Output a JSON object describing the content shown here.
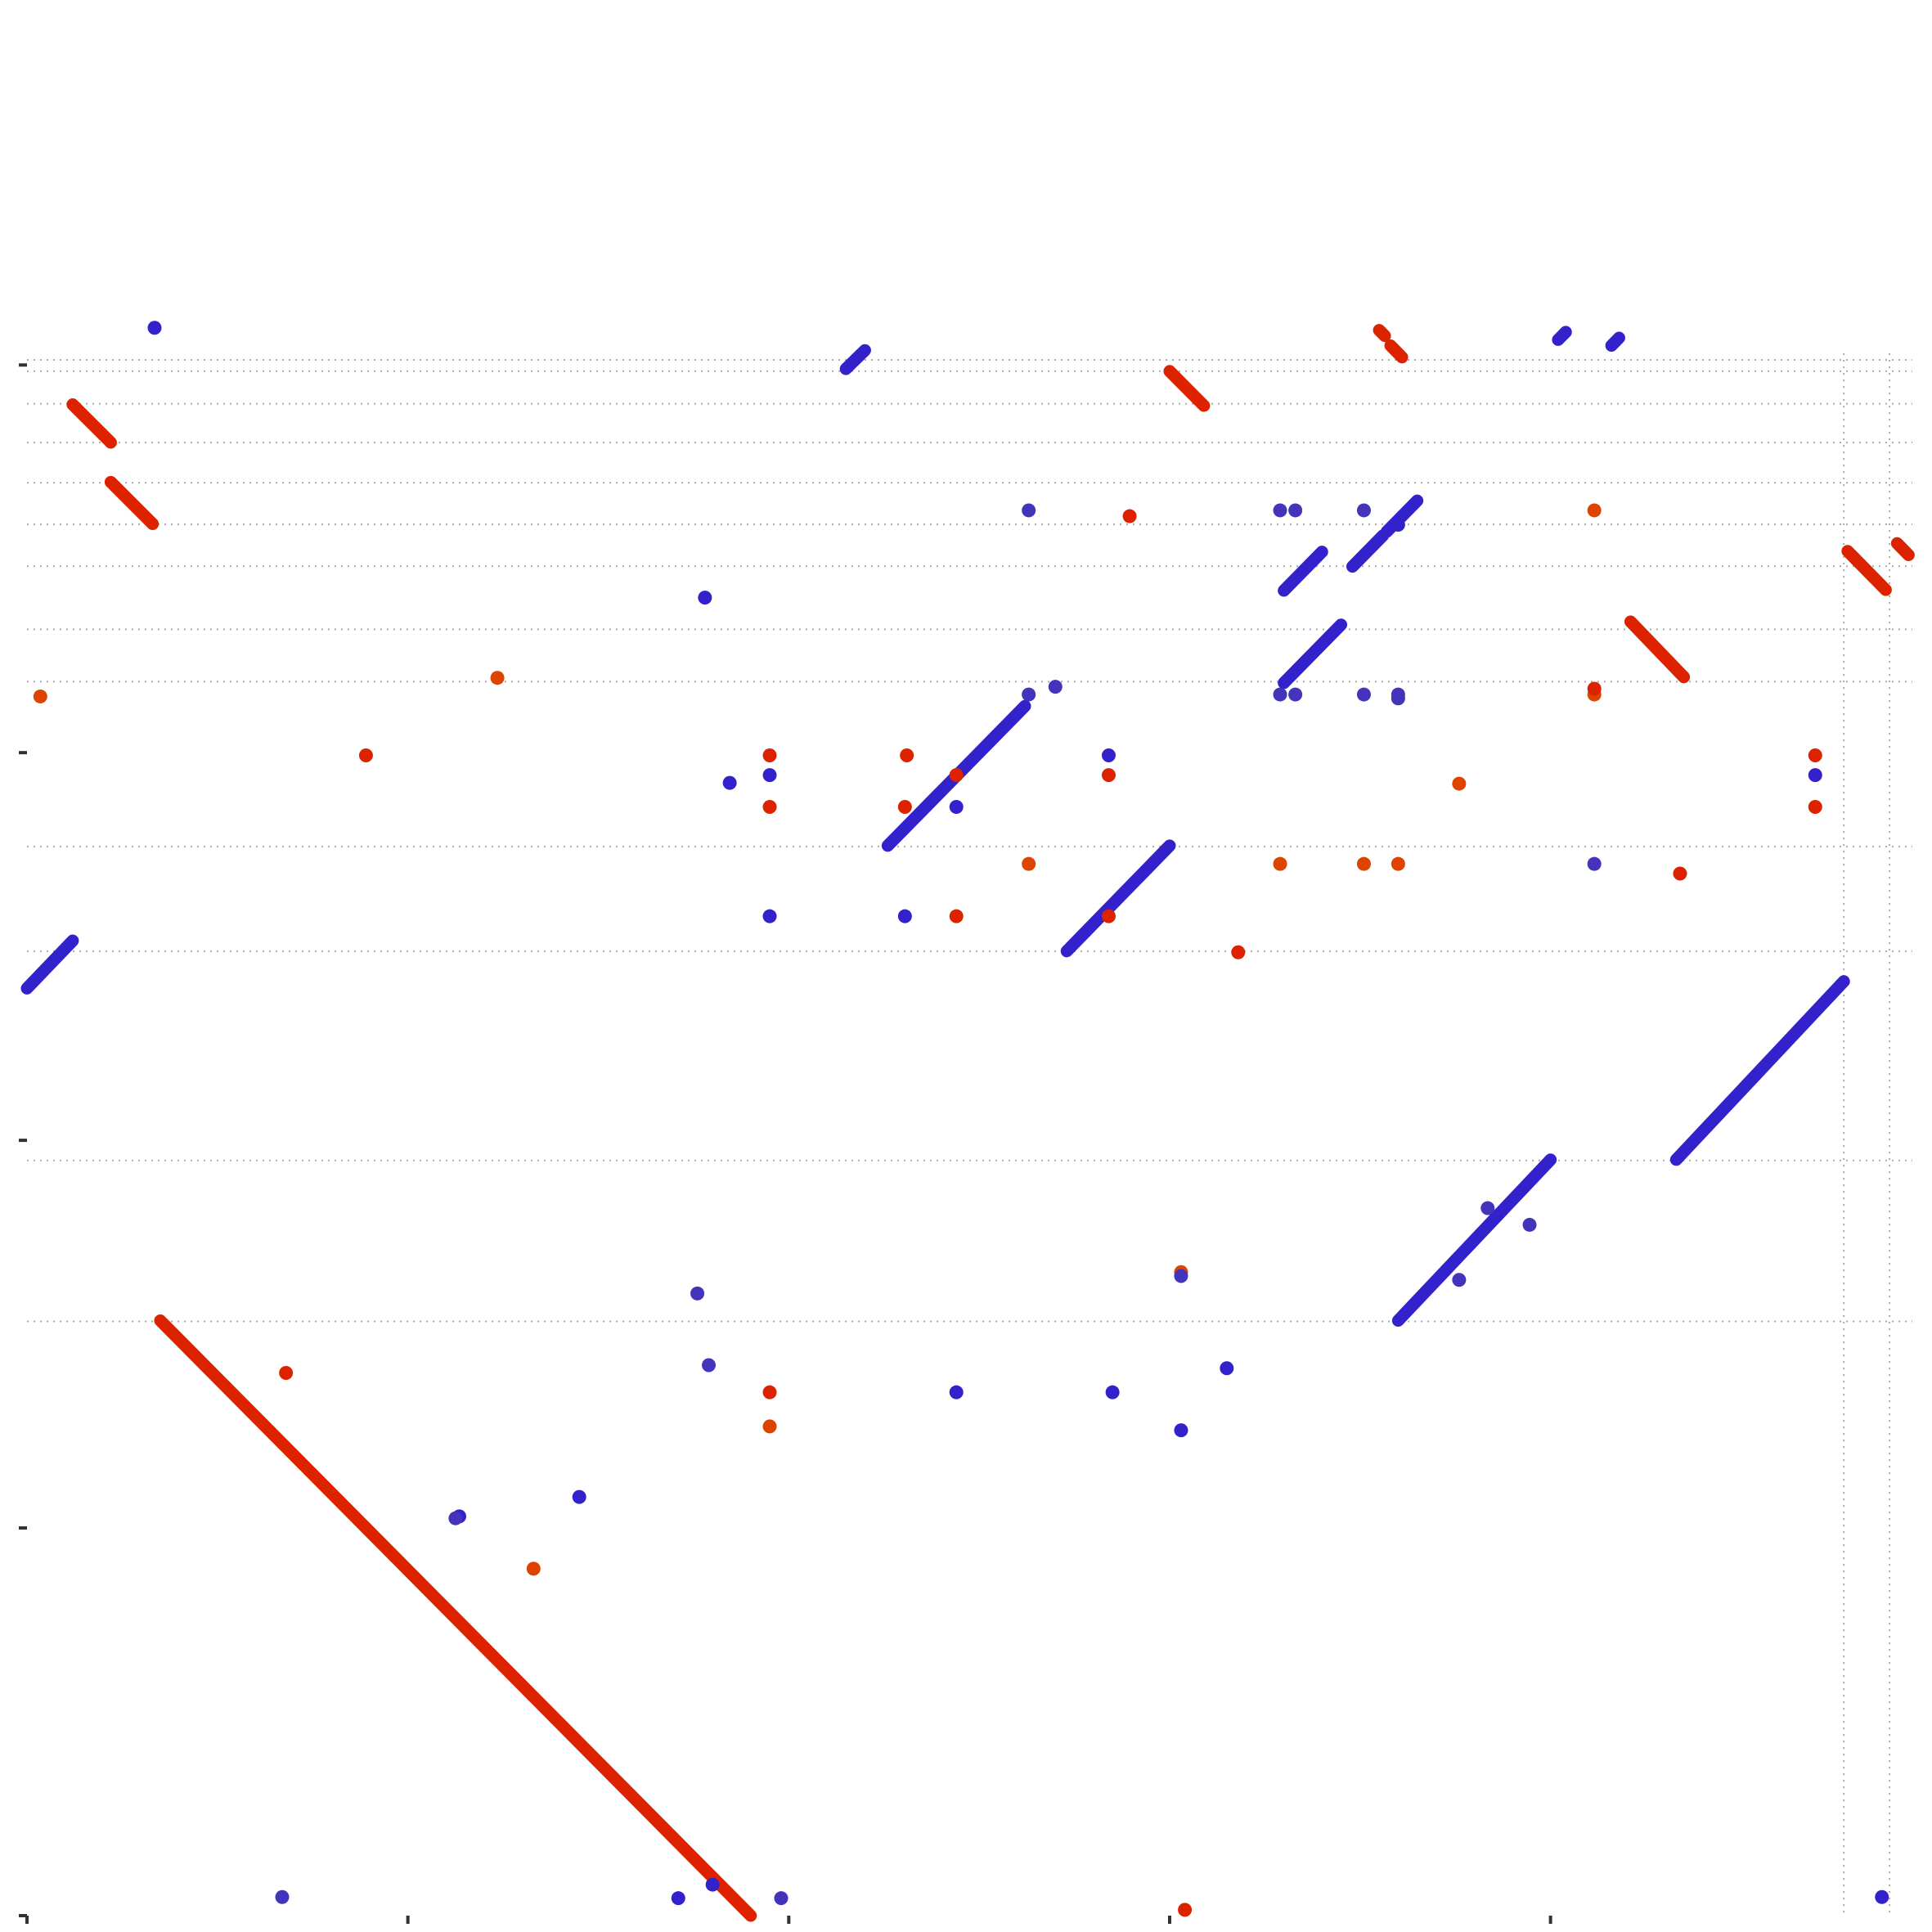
{
  "chart_data": {
    "type": "scatter",
    "title": "",
    "xlabel": "",
    "ylabel": "",
    "xlim": [
      0,
      4950
    ],
    "ylim": [
      0,
      4030
    ],
    "grid": "dotted",
    "legend": "none",
    "colors": {
      "forward": "#dd2200",
      "reverse": "#3322cc",
      "forward_alt": "#dd4400",
      "reverse_alt": "#4433bb",
      "grid": "#aaaaaa",
      "axis": "#333333"
    },
    "x_ticks": [
      0,
      1000,
      2000,
      3000,
      4000
    ],
    "y_ticks": [
      0,
      1000,
      2000,
      3000,
      4000
    ],
    "x_gridlines": [
      4770,
      4890
    ],
    "y_gridlines": [
      1533,
      1948,
      2488,
      2758,
      3183,
      3318,
      3481,
      3589,
      3696,
      3800,
      3900,
      3984,
      4013,
      4038,
      4050,
      4062,
      4073,
      4083,
      4093
    ],
    "segments": [
      {
        "strand": "forward",
        "x": [
          350,
          1900
        ],
        "y": [
          1535,
          0
        ]
      },
      {
        "strand": "reverse",
        "x": [
          0,
          120
        ],
        "y": [
          2392,
          2515
        ]
      },
      {
        "strand": "forward",
        "x": [
          120,
          220
        ],
        "y": [
          3898,
          3800
        ]
      },
      {
        "strand": "forward",
        "x": [
          220,
          330
        ],
        "y": [
          3698,
          3590
        ]
      },
      {
        "strand": "reverse",
        "x": [
          2150,
          2200
        ],
        "y": [
          3990,
          4038
        ]
      },
      {
        "strand": "forward",
        "x": [
          3000,
          3090
        ],
        "y": [
          3984,
          3895
        ]
      },
      {
        "strand": "reverse",
        "x": [
          3480,
          3560
        ],
        "y": [
          3480,
          3560
        ]
      },
      {
        "strand": "reverse",
        "x": [
          3300,
          3400
        ],
        "y": [
          3418,
          3518
        ]
      },
      {
        "strand": "forward",
        "x": [
          3550,
          3565
        ],
        "y": [
          4090,
          4075
        ]
      },
      {
        "strand": "forward",
        "x": [
          3580,
          3610
        ],
        "y": [
          4050,
          4020
        ]
      },
      {
        "strand": "reverse",
        "x": [
          4020,
          4040
        ],
        "y": [
          4065,
          4085
        ]
      },
      {
        "strand": "reverse",
        "x": [
          4160,
          4180
        ],
        "y": [
          4050,
          4070
        ]
      },
      {
        "strand": "forward",
        "x": [
          4210,
          4350
        ],
        "y": [
          3338,
          3195
        ]
      },
      {
        "strand": "forward",
        "x": [
          4780,
          4880
        ],
        "y": [
          3520,
          3420
        ]
      },
      {
        "strand": "forward",
        "x": [
          4910,
          4940
        ],
        "y": [
          3540,
          3510
        ]
      },
      {
        "strand": "reverse",
        "x": [
          2260,
          2620
        ],
        "y": [
          2760,
          3120
        ]
      },
      {
        "strand": "reverse",
        "x": [
          2730,
          3000
        ],
        "y": [
          2488,
          2760
        ]
      },
      {
        "strand": "reverse",
        "x": [
          3300,
          3450
        ],
        "y": [
          3180,
          3330
        ]
      },
      {
        "strand": "reverse",
        "x": [
          3570,
          3650
        ],
        "y": [
          3570,
          3650
        ]
      },
      {
        "strand": "reverse",
        "x": [
          3600,
          4000
        ],
        "y": [
          1535,
          1950
        ]
      },
      {
        "strand": "reverse",
        "x": [
          4330,
          4770
        ],
        "y": [
          1950,
          2410
        ]
      }
    ],
    "points": [
      {
        "strand": "reverse",
        "x": 335,
        "y": 4096
      },
      {
        "strand": "forward_alt",
        "x": 35,
        "y": 3145
      },
      {
        "strand": "forward_alt",
        "x": 1235,
        "y": 3193
      },
      {
        "strand": "reverse",
        "x": 1780,
        "y": 3400
      },
      {
        "strand": "reverse_alt",
        "x": 2630,
        "y": 3625
      },
      {
        "strand": "forward",
        "x": 2895,
        "y": 3610
      },
      {
        "strand": "reverse_alt",
        "x": 3290,
        "y": 3625
      },
      {
        "strand": "reverse_alt",
        "x": 3330,
        "y": 3625
      },
      {
        "strand": "reverse_alt",
        "x": 3510,
        "y": 3625
      },
      {
        "strand": "reverse",
        "x": 3600,
        "y": 3588
      },
      {
        "strand": "forward_alt",
        "x": 4115,
        "y": 3625
      },
      {
        "strand": "forward",
        "x": 890,
        "y": 2993
      },
      {
        "strand": "forward",
        "x": 1950,
        "y": 2993
      },
      {
        "strand": "forward",
        "x": 2310,
        "y": 2993
      },
      {
        "strand": "reverse",
        "x": 2840,
        "y": 2993
      },
      {
        "strand": "forward",
        "x": 4695,
        "y": 2993
      },
      {
        "strand": "reverse",
        "x": 1845,
        "y": 2922
      },
      {
        "strand": "reverse",
        "x": 1950,
        "y": 2942
      },
      {
        "strand": "forward",
        "x": 2440,
        "y": 2942
      },
      {
        "strand": "forward",
        "x": 2840,
        "y": 2942
      },
      {
        "strand": "reverse",
        "x": 4695,
        "y": 2942
      },
      {
        "strand": "forward",
        "x": 1950,
        "y": 2860
      },
      {
        "strand": "forward",
        "x": 2305,
        "y": 2860
      },
      {
        "strand": "reverse",
        "x": 2440,
        "y": 2860
      },
      {
        "strand": "forward",
        "x": 4695,
        "y": 2860
      },
      {
        "strand": "forward_alt",
        "x": 3760,
        "y": 2920
      },
      {
        "strand": "forward_alt",
        "x": 2630,
        "y": 2713
      },
      {
        "strand": "forward_alt",
        "x": 3290,
        "y": 2713
      },
      {
        "strand": "forward_alt",
        "x": 3510,
        "y": 2713
      },
      {
        "strand": "forward_alt",
        "x": 3600,
        "y": 2713
      },
      {
        "strand": "reverse_alt",
        "x": 4115,
        "y": 2713
      },
      {
        "strand": "forward",
        "x": 4340,
        "y": 2688
      },
      {
        "strand": "reverse",
        "x": 1950,
        "y": 2578
      },
      {
        "strand": "reverse",
        "x": 2305,
        "y": 2578
      },
      {
        "strand": "forward",
        "x": 2440,
        "y": 2578
      },
      {
        "strand": "forward",
        "x": 2840,
        "y": 2578
      },
      {
        "strand": "forward",
        "x": 3180,
        "y": 2485
      },
      {
        "strand": "reverse_alt",
        "x": 2700,
        "y": 3170
      },
      {
        "strand": "reverse_alt",
        "x": 2630,
        "y": 3150
      },
      {
        "strand": "reverse_alt",
        "x": 3290,
        "y": 3150
      },
      {
        "strand": "reverse_alt",
        "x": 3330,
        "y": 3150
      },
      {
        "strand": "reverse_alt",
        "x": 3510,
        "y": 3150
      },
      {
        "strand": "reverse_alt",
        "x": 3600,
        "y": 3150
      },
      {
        "strand": "reverse_alt",
        "x": 3600,
        "y": 3140
      },
      {
        "strand": "forward_alt",
        "x": 4115,
        "y": 3150
      },
      {
        "strand": "forward",
        "x": 4115,
        "y": 3165
      },
      {
        "strand": "reverse_alt",
        "x": 3835,
        "y": 1825
      },
      {
        "strand": "reverse_alt",
        "x": 3945,
        "y": 1782
      },
      {
        "strand": "reverse_alt",
        "x": 3760,
        "y": 1640
      },
      {
        "strand": "forward_alt",
        "x": 3030,
        "y": 1660
      },
      {
        "strand": "reverse_alt",
        "x": 3030,
        "y": 1650
      },
      {
        "strand": "reverse_alt",
        "x": 1760,
        "y": 1605
      },
      {
        "strand": "reverse_alt",
        "x": 1790,
        "y": 1420
      },
      {
        "strand": "forward",
        "x": 680,
        "y": 1400
      },
      {
        "strand": "reverse",
        "x": 3150,
        "y": 1412
      },
      {
        "strand": "forward",
        "x": 1950,
        "y": 1350
      },
      {
        "strand": "reverse",
        "x": 2440,
        "y": 1350
      },
      {
        "strand": "reverse",
        "x": 2850,
        "y": 1350
      },
      {
        "strand": "forward_alt",
        "x": 1950,
        "y": 1262
      },
      {
        "strand": "reverse",
        "x": 3030,
        "y": 1252
      },
      {
        "strand": "reverse",
        "x": 1450,
        "y": 1080
      },
      {
        "strand": "reverse",
        "x": 1135,
        "y": 1030
      },
      {
        "strand": "reverse_alt",
        "x": 1125,
        "y": 1025
      },
      {
        "strand": "forward_alt",
        "x": 1330,
        "y": 895
      },
      {
        "strand": "reverse",
        "x": 1800,
        "y": 80
      },
      {
        "strand": "reverse",
        "x": 1710,
        "y": 45
      },
      {
        "strand": "reverse_alt",
        "x": 670,
        "y": 48
      },
      {
        "strand": "reverse_alt",
        "x": 1980,
        "y": 45
      },
      {
        "strand": "forward",
        "x": 3040,
        "y": 15
      },
      {
        "strand": "reverse",
        "x": 4870,
        "y": 48
      }
    ]
  }
}
